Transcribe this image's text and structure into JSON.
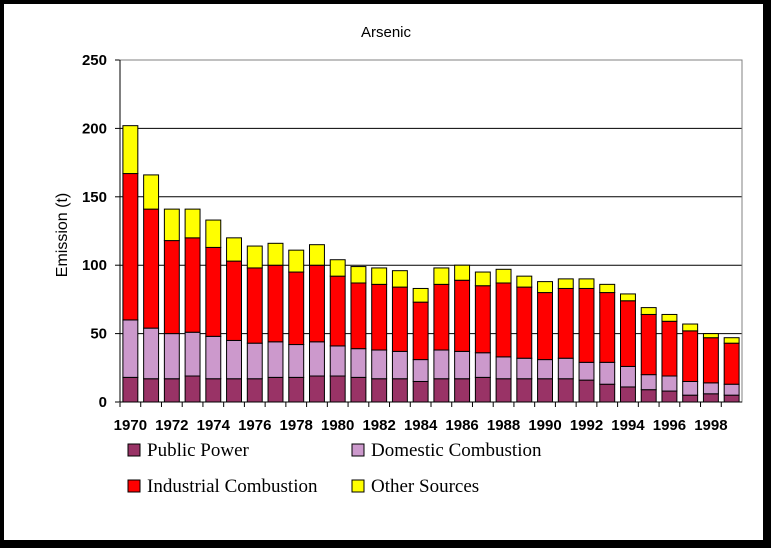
{
  "chart_data": {
    "type": "bar",
    "stacked": true,
    "title": "Arsenic",
    "ylabel": "Emission (t)",
    "xlabel": "",
    "ylim": [
      0,
      250
    ],
    "yticks": [
      0,
      50,
      100,
      150,
      200,
      250
    ],
    "grid": true,
    "legend_position": "bottom",
    "categories": [
      "1970",
      "1971",
      "1972",
      "1973",
      "1974",
      "1975",
      "1976",
      "1977",
      "1978",
      "1979",
      "1980",
      "1981",
      "1982",
      "1983",
      "1984",
      "1985",
      "1986",
      "1987",
      "1988",
      "1989",
      "1990",
      "1991",
      "1992",
      "1993",
      "1994",
      "1995",
      "1996",
      "1997",
      "1998",
      "1999"
    ],
    "xtick_labels": [
      "1970",
      "1972",
      "1974",
      "1976",
      "1978",
      "1980",
      "1982",
      "1984",
      "1986",
      "1988",
      "1990",
      "1992",
      "1994",
      "1996",
      "1998"
    ],
    "series": [
      {
        "name": "Public Power",
        "color": "#993366",
        "values": [
          18,
          17,
          17,
          19,
          17,
          17,
          17,
          18,
          18,
          19,
          19,
          18,
          17,
          17,
          15,
          17,
          17,
          18,
          17,
          17,
          17,
          17,
          16,
          13,
          11,
          9,
          8,
          5,
          6,
          5
        ]
      },
      {
        "name": "Domestic Combustion",
        "color": "#CC99CC",
        "values": [
          42,
          37,
          33,
          32,
          31,
          28,
          26,
          26,
          24,
          25,
          22,
          21,
          21,
          20,
          16,
          21,
          20,
          18,
          16,
          15,
          14,
          15,
          13,
          16,
          15,
          11,
          11,
          10,
          8,
          8
        ]
      },
      {
        "name": "Industrial Combustion",
        "color": "#FF0000",
        "values": [
          107,
          87,
          68,
          69,
          65,
          58,
          55,
          56,
          53,
          56,
          51,
          48,
          48,
          47,
          42,
          48,
          52,
          49,
          54,
          52,
          49,
          51,
          54,
          51,
          48,
          44,
          40,
          37,
          33,
          30
        ]
      },
      {
        "name": "Other Sources",
        "color": "#FFFF00",
        "values": [
          35,
          25,
          23,
          21,
          20,
          17,
          16,
          16,
          16,
          15,
          12,
          12,
          12,
          12,
          10,
          12,
          11,
          10,
          10,
          8,
          8,
          7,
          7,
          6,
          5,
          5,
          5,
          5,
          3,
          4
        ]
      }
    ]
  }
}
